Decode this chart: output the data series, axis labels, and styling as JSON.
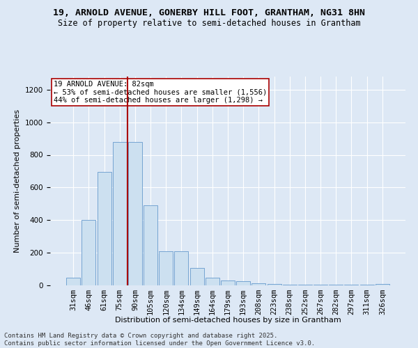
{
  "title1": "19, ARNOLD AVENUE, GONERBY HILL FOOT, GRANTHAM, NG31 8HN",
  "title2": "Size of property relative to semi-detached houses in Grantham",
  "xlabel": "Distribution of semi-detached houses by size in Grantham",
  "ylabel": "Number of semi-detached properties",
  "bar_labels": [
    "31sqm",
    "46sqm",
    "61sqm",
    "75sqm",
    "90sqm",
    "105sqm",
    "120sqm",
    "134sqm",
    "149sqm",
    "164sqm",
    "179sqm",
    "193sqm",
    "208sqm",
    "223sqm",
    "238sqm",
    "252sqm",
    "267sqm",
    "282sqm",
    "297sqm",
    "311sqm",
    "326sqm"
  ],
  "bar_values": [
    47,
    400,
    695,
    880,
    880,
    490,
    210,
    210,
    105,
    45,
    28,
    25,
    13,
    10,
    5,
    5,
    5,
    5,
    5,
    5,
    10
  ],
  "bar_color": "#cce0f0",
  "bar_edge_color": "#6699cc",
  "vline_x_index": 4,
  "vline_color": "#aa0000",
  "annotation_title": "19 ARNOLD AVENUE: 82sqm",
  "annotation_line1": "← 53% of semi-detached houses are smaller (1,556)",
  "annotation_line2": "44% of semi-detached houses are larger (1,298) →",
  "annotation_box_color": "#ffffff",
  "annotation_box_edge": "#aa0000",
  "ylim": [
    0,
    1280
  ],
  "yticks": [
    0,
    200,
    400,
    600,
    800,
    1000,
    1200
  ],
  "background_color": "#dde8f5",
  "plot_background": "#dde8f5",
  "footer1": "Contains HM Land Registry data © Crown copyright and database right 2025.",
  "footer2": "Contains public sector information licensed under the Open Government Licence v3.0.",
  "title1_fontsize": 9.5,
  "title2_fontsize": 8.5,
  "xlabel_fontsize": 8,
  "ylabel_fontsize": 8,
  "tick_fontsize": 7.5,
  "annotation_fontsize": 7.5,
  "footer_fontsize": 6.5
}
